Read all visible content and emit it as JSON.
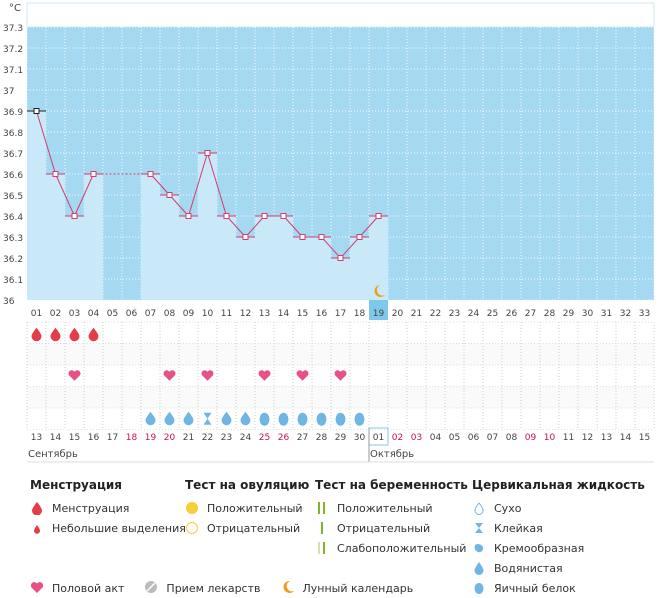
{
  "units": "°C",
  "chart_data": {
    "type": "bar",
    "ylim": [
      36,
      37.35
    ],
    "yticks": [
      "37.3",
      "37.2",
      "37.1",
      "37",
      "36.9",
      "36.8",
      "36.7",
      "36.6",
      "36.5",
      "36.4",
      "36.3",
      "36.2",
      "36.1",
      "36"
    ],
    "cycle_days": [
      "01",
      "02",
      "03",
      "04",
      "05",
      "06",
      "07",
      "08",
      "09",
      "10",
      "11",
      "12",
      "13",
      "14",
      "15",
      "16",
      "17",
      "18",
      "19",
      "20",
      "21",
      "22",
      "23",
      "24",
      "25",
      "26",
      "27",
      "28",
      "29",
      "30",
      "31",
      "32",
      "33"
    ],
    "temperatures": [
      36.9,
      36.6,
      36.4,
      36.6,
      null,
      null,
      36.6,
      36.5,
      36.4,
      36.7,
      36.4,
      36.3,
      36.4,
      36.4,
      36.3,
      36.3,
      36.2,
      36.3,
      36.4
    ],
    "today_index": 18,
    "dates": [
      "13",
      "14",
      "15",
      "16",
      "17",
      "18",
      "19",
      "20",
      "21",
      "22",
      "23",
      "24",
      "25",
      "26",
      "27",
      "28",
      "29",
      "30",
      "01",
      "02",
      "03",
      "04",
      "05",
      "06",
      "07",
      "08",
      "09",
      "10",
      "11",
      "12",
      "13",
      "14",
      "15"
    ],
    "red_dates": [
      5,
      6,
      7,
      12,
      13,
      19,
      20,
      26,
      27
    ],
    "months": [
      {
        "label": "Сентябрь",
        "index": 0
      },
      {
        "label": "Октябрь",
        "index": 18
      }
    ]
  },
  "rows": {
    "menstruation": [
      0,
      1,
      2,
      3
    ],
    "intercourse": [
      2,
      7,
      9,
      12,
      14,
      16
    ],
    "fluid": [
      "water",
      "water",
      "water",
      "sticky",
      "water",
      "water",
      "egg",
      "egg",
      "egg",
      "egg",
      "egg",
      "egg"
    ]
  },
  "colors": {
    "sky": "#a5d9f2",
    "bar": "#c9e9f9",
    "line": "#d23c6f",
    "heart": "#e8508a",
    "drop": "#e43c48",
    "fluid": "#6fb6e4",
    "moon": "#f39c12",
    "today": "#7ec8ec"
  },
  "legend": {
    "menstruation": {
      "title": "Менструация",
      "items": [
        "Менструация",
        "Небольшие выделения"
      ]
    },
    "ovulation": {
      "title": "Тест на овуляцию",
      "items": [
        "Положительный",
        "Отрицательный"
      ]
    },
    "pregnancy": {
      "title": "Тест на беременность",
      "items": [
        "Положительный",
        "Отрицательный",
        "Слабоположительный"
      ]
    },
    "cervical": {
      "title": "Цервикальная жидкость",
      "items": [
        "Сухо",
        "Клейкая",
        "Кремообразная",
        "Водянистая",
        "Яичный белок"
      ]
    },
    "bottom": [
      "Половой акт",
      "Прием лекарств",
      "Лунный календарь"
    ]
  }
}
